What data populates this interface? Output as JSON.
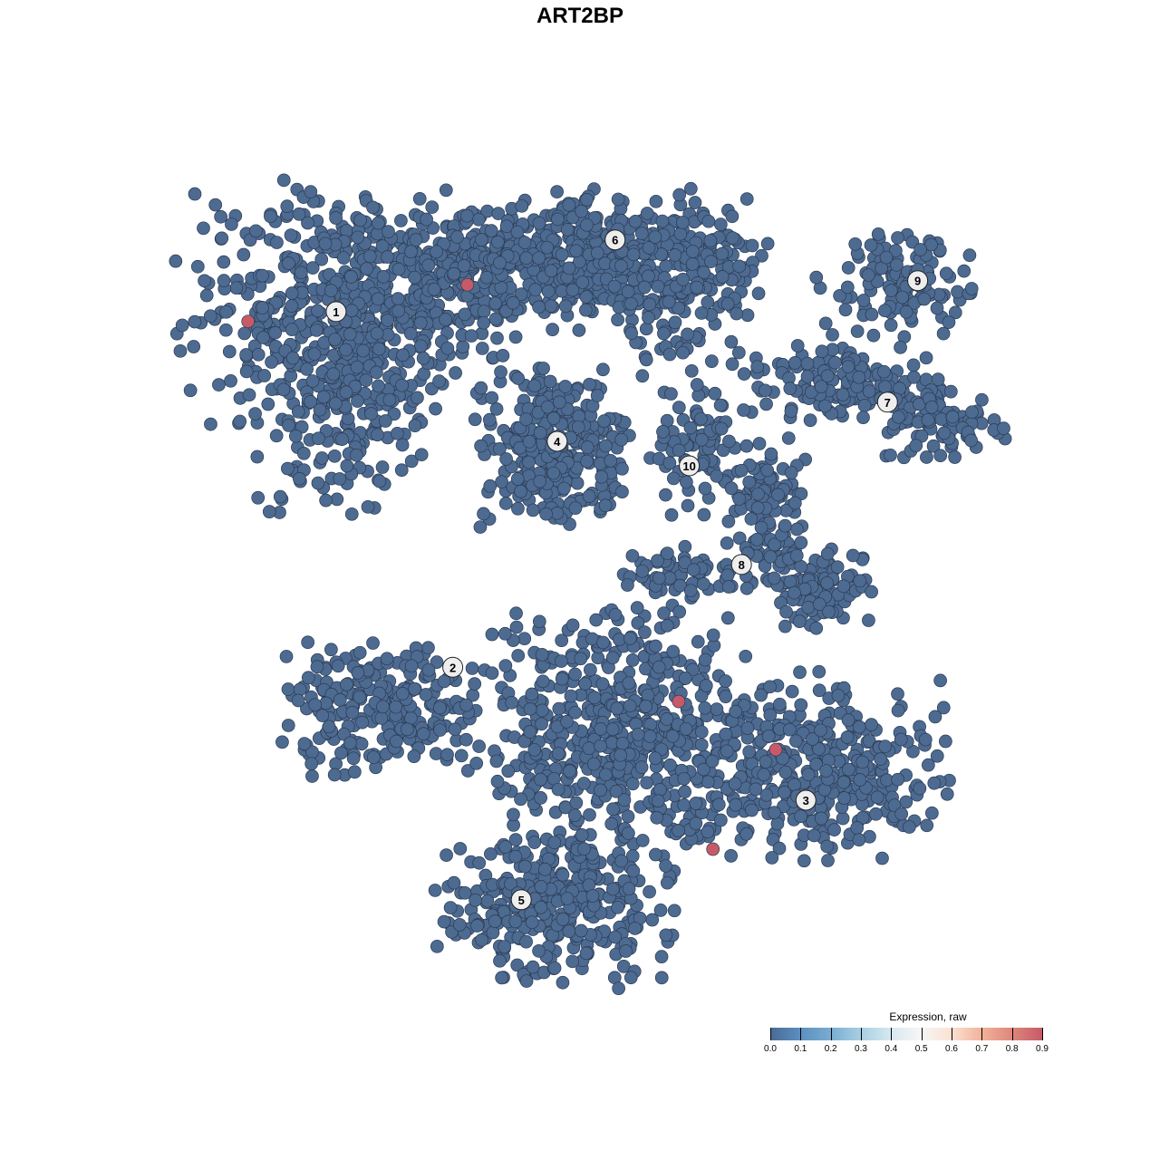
{
  "chart_data": {
    "type": "scatter",
    "title": "ART2BP",
    "xlabel": "",
    "ylabel": "",
    "xlim": [
      -55,
      55
    ],
    "ylim": [
      -55,
      55
    ],
    "grid": false,
    "axes_visible": false,
    "point_color_low": "#4d6a91",
    "point_color_high": "#c75a68",
    "point_outline": "#2b3b52",
    "clusters": [
      {
        "label": "1",
        "center": [
          -29.9,
          32.9
        ],
        "blobs": [
          {
            "mean": [
              -28,
              34
            ],
            "sd": [
              13,
              9
            ],
            "n": 500
          },
          {
            "mean": [
              -30,
              22
            ],
            "sd": [
              7,
              9
            ],
            "n": 200
          },
          {
            "mean": [
              -12,
              38
            ],
            "sd": [
              10,
              5
            ],
            "n": 250
          }
        ]
      },
      {
        "label": "6",
        "center": [
          4.3,
          41.7
        ],
        "blobs": [
          {
            "mean": [
              3,
              40
            ],
            "sd": [
              12,
              5
            ],
            "n": 350
          },
          {
            "mean": [
              12,
              35
            ],
            "sd": [
              6,
              6
            ],
            "n": 120
          }
        ]
      },
      {
        "label": "9",
        "center": [
          41.4,
          36.7
        ],
        "blobs": [
          {
            "mean": [
              38,
              36
            ],
            "sd": [
              6,
              4
            ],
            "n": 120
          }
        ]
      },
      {
        "label": "7",
        "center": [
          37.7,
          21.8
        ],
        "blobs": [
          {
            "mean": [
              33,
              24
            ],
            "sd": [
              8,
              3
            ],
            "n": 150
          },
          {
            "mean": [
              45,
              19
            ],
            "sd": [
              5,
              3
            ],
            "n": 80
          }
        ]
      },
      {
        "label": "4",
        "center": [
          -2.8,
          17.0
        ],
        "blobs": [
          {
            "mean": [
              -3,
              16
            ],
            "sd": [
              5.5,
              6
            ],
            "n": 300
          }
        ]
      },
      {
        "label": "10",
        "center": [
          13.4,
          14.0
        ],
        "blobs": [
          {
            "mean": [
              14,
              16
            ],
            "sd": [
              4,
              5
            ],
            "n": 80
          }
        ]
      },
      {
        "label": "8",
        "center": [
          19.8,
          1.9
        ],
        "blobs": [
          {
            "mean": [
              23,
              8
            ],
            "sd": [
              3,
              6
            ],
            "n": 120
          },
          {
            "mean": [
              30,
              -1
            ],
            "sd": [
              4,
              3
            ],
            "n": 100
          },
          {
            "mean": [
              13,
              1
            ],
            "sd": [
              5,
              2
            ],
            "n": 60
          }
        ]
      },
      {
        "label": "2",
        "center": [
          -15.6,
          -10.7
        ],
        "blobs": [
          {
            "mean": [
              -24,
              -16
            ],
            "sd": [
              8,
              5
            ],
            "n": 250
          }
        ]
      },
      {
        "label": "3",
        "center": [
          27.7,
          -27.0
        ],
        "blobs": [
          {
            "mean": [
              27,
              -23
            ],
            "sd": [
              11,
              7
            ],
            "n": 400
          }
        ]
      },
      {
        "label": "5",
        "center": [
          -7.2,
          -39.2
        ],
        "blobs": [
          {
            "mean": [
              -3,
              -40
            ],
            "sd": [
              9,
              6
            ],
            "n": 350
          },
          {
            "mean": [
              4,
              -18
            ],
            "sd": [
              10,
              9
            ],
            "n": 500
          }
        ]
      }
    ],
    "expressed_points": [
      {
        "x": -40.7,
        "y": 31.7,
        "value": 0.9
      },
      {
        "x": -13.8,
        "y": 36.2,
        "value": 0.9
      },
      {
        "x": 12.1,
        "y": -14.9,
        "value": 0.9
      },
      {
        "x": 24.0,
        "y": -20.8,
        "value": 0.9
      },
      {
        "x": 16.3,
        "y": -33.0,
        "value": 0.9
      }
    ],
    "baseline_value": 0.0,
    "legend": {
      "title": "Expression, raw",
      "placement": "bottom-right",
      "ticks": [
        "0.0",
        "0.1",
        "0.2",
        "0.3",
        "0.4",
        "0.5",
        "0.6",
        "0.7",
        "0.8",
        "0.9"
      ],
      "range": [
        0,
        0.9
      ]
    }
  }
}
